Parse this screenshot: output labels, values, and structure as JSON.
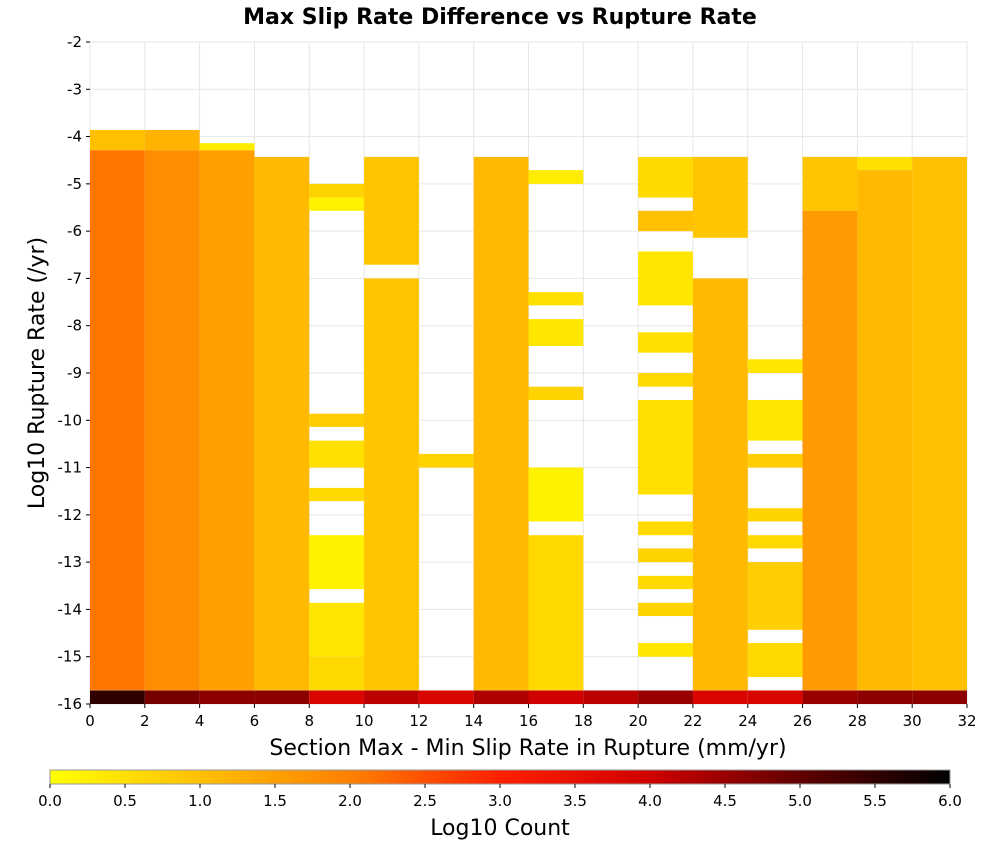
{
  "chart_data": {
    "type": "heatmap",
    "title": "Max Slip Rate Difference vs Rupture Rate",
    "xlabel": "Section Max - Min Slip Rate in Rupture (mm/yr)",
    "ylabel": "Log10 Rupture Rate (/yr)",
    "xlim": [
      0,
      32
    ],
    "ylim": [
      -16,
      -2
    ],
    "x_bin_width": 2,
    "y_bin_height": 0.2857,
    "xticks": [
      "0",
      "2",
      "4",
      "6",
      "8",
      "10",
      "12",
      "14",
      "16",
      "18",
      "20",
      "22",
      "24",
      "26",
      "28",
      "30",
      "32"
    ],
    "yticks": [
      "-2",
      "-3",
      "-4",
      "-5",
      "-6",
      "-7",
      "-8",
      "-9",
      "-10",
      "-11",
      "-12",
      "-13",
      "-14",
      "-15",
      "-16"
    ],
    "grid": true,
    "colorbar": {
      "label": "Log10 Count",
      "range": [
        0,
        6
      ],
      "ticks": [
        "0.0",
        "0.5",
        "1.0",
        "1.5",
        "2.0",
        "2.5",
        "3.0",
        "3.5",
        "4.0",
        "4.5",
        "5.0",
        "5.5",
        "6.0"
      ],
      "colors": [
        "#ffff00",
        "#ffc000",
        "#ff8000",
        "#ff2000",
        "#d00000",
        "#600000",
        "#000000"
      ]
    },
    "columns": [
      {
        "x": 0,
        "bottom": 5.5,
        "segments": [
          [
            -4.29,
            -3.86,
            1.0
          ],
          [
            -15.71,
            -4.29,
            2.1
          ]
        ]
      },
      {
        "x": 2,
        "bottom": 4.8,
        "segments": [
          [
            -4.29,
            -3.86,
            1.2
          ],
          [
            -15.71,
            -4.29,
            1.8
          ]
        ]
      },
      {
        "x": 4,
        "bottom": 4.6,
        "segments": [
          [
            -4.29,
            -4.14,
            0.3
          ],
          [
            -15.71,
            -4.29,
            1.5
          ]
        ]
      },
      {
        "x": 6,
        "bottom": 4.6,
        "segments": [
          [
            -15.71,
            -4.43,
            1.1
          ]
        ]
      },
      {
        "x": 8,
        "bottom": 3.8,
        "segments": [
          [
            -5.29,
            -5.0,
            0.7
          ],
          [
            -5.57,
            -5.29,
            0.2
          ],
          [
            -10.14,
            -9.86,
            0.8
          ],
          [
            -11.0,
            -10.43,
            0.5
          ],
          [
            -11.71,
            -11.43,
            0.6
          ],
          [
            -13.57,
            -12.43,
            0.2
          ],
          [
            -15.0,
            -13.86,
            0.4
          ],
          [
            -15.71,
            -15.0,
            0.6
          ]
        ]
      },
      {
        "x": 10,
        "bottom": 4.2,
        "segments": [
          [
            -6.71,
            -4.43,
            0.9
          ],
          [
            -15.71,
            -7.0,
            0.9
          ]
        ]
      },
      {
        "x": 12,
        "bottom": 3.8,
        "segments": [
          [
            -11.0,
            -10.71,
            0.7
          ]
        ]
      },
      {
        "x": 14,
        "bottom": 4.3,
        "segments": [
          [
            -15.71,
            -4.43,
            1.1
          ]
        ]
      },
      {
        "x": 16,
        "bottom": 4.0,
        "segments": [
          [
            -5.0,
            -4.71,
            0.3
          ],
          [
            -7.57,
            -7.29,
            0.5
          ],
          [
            -8.43,
            -7.86,
            0.4
          ],
          [
            -9.57,
            -9.29,
            0.7
          ],
          [
            -12.14,
            -11.0,
            0.2
          ],
          [
            -15.71,
            -12.43,
            0.6
          ]
        ]
      },
      {
        "x": 18,
        "bottom": 4.2,
        "segments": []
      },
      {
        "x": 20,
        "bottom": 4.5,
        "segments": [
          [
            -5.29,
            -4.43,
            0.6
          ],
          [
            -6.0,
            -5.57,
            1.0
          ],
          [
            -7.57,
            -6.43,
            0.4
          ],
          [
            -8.57,
            -8.14,
            0.5
          ],
          [
            -9.29,
            -9.0,
            0.6
          ],
          [
            -11.57,
            -9.57,
            0.5
          ],
          [
            -12.43,
            -12.14,
            0.6
          ],
          [
            -13.0,
            -12.71,
            0.7
          ],
          [
            -13.57,
            -13.29,
            0.6
          ],
          [
            -14.14,
            -13.86,
            0.7
          ],
          [
            -15.0,
            -14.71,
            0.4
          ]
        ]
      },
      {
        "x": 22,
        "bottom": 3.8,
        "segments": [
          [
            -6.14,
            -4.43,
            0.9
          ],
          [
            -15.71,
            -7.0,
            1.1
          ]
        ]
      },
      {
        "x": 24,
        "bottom": 3.8,
        "segments": [
          [
            -9.0,
            -8.71,
            0.4
          ],
          [
            -10.43,
            -9.57,
            0.4
          ],
          [
            -11.0,
            -10.71,
            0.8
          ],
          [
            -12.14,
            -11.86,
            0.7
          ],
          [
            -12.71,
            -12.43,
            0.6
          ],
          [
            -14.43,
            -13.0,
            0.8
          ],
          [
            -15.43,
            -14.71,
            0.6
          ]
        ]
      },
      {
        "x": 26,
        "bottom": 4.5,
        "segments": [
          [
            -5.57,
            -4.43,
            0.9
          ],
          [
            -15.71,
            -5.57,
            1.6
          ]
        ]
      },
      {
        "x": 28,
        "bottom": 4.6,
        "segments": [
          [
            -4.71,
            -4.43,
            0.5
          ],
          [
            -15.71,
            -4.71,
            1.1
          ]
        ]
      },
      {
        "x": 30,
        "bottom": 4.6,
        "segments": [
          [
            -15.71,
            -4.43,
            1.0
          ]
        ]
      }
    ]
  }
}
